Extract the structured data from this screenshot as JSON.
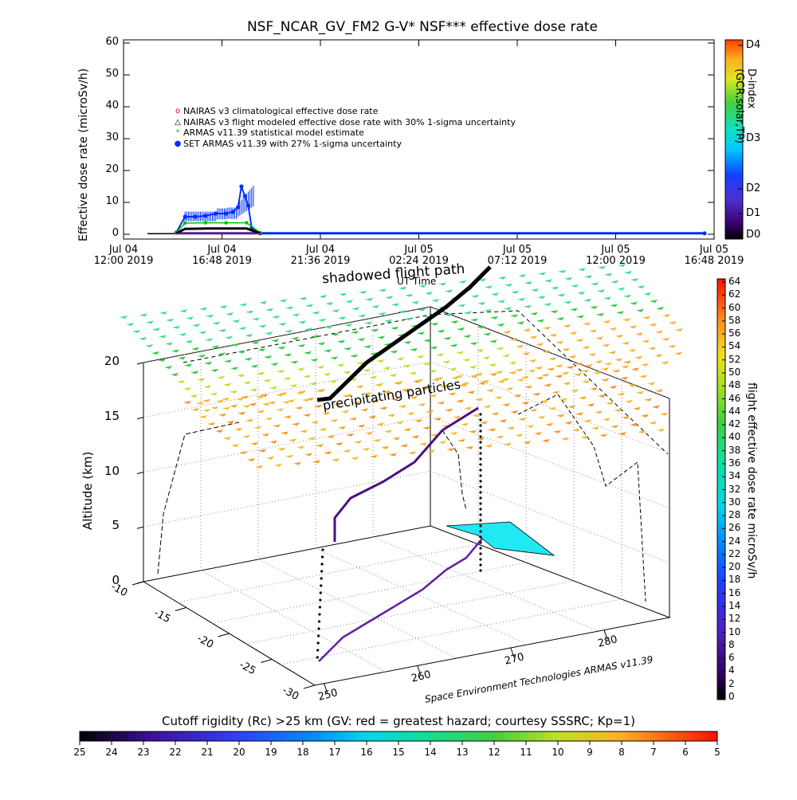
{
  "title": "NSF_NCAR_GV_FM2 G-V* NSF*** effective dose rate",
  "top_chart": {
    "ylabel": "Effective dose rate  (microSv/h)",
    "yticks": [
      "0",
      "10",
      "20",
      "30",
      "40",
      "50",
      "60"
    ],
    "xticks": [
      {
        "l1": "Jul 04",
        "l2": "12:00 2019"
      },
      {
        "l1": "Jul 04",
        "l2": "16:48 2019"
      },
      {
        "l1": "Jul 04",
        "l2": "21:36 2019"
      },
      {
        "l1": "Jul 05",
        "l2": "02:24 2019"
      },
      {
        "l1": "Jul 05",
        "l2": "07:12 2019"
      },
      {
        "l1": "Jul 05",
        "l2": "12:00 2019"
      },
      {
        "l1": "Jul 05",
        "l2": "16:48 2019"
      }
    ],
    "x_overlay_text": "UT Time",
    "dindex_label": "D-index (GCR,solar,TP)",
    "dindex_ticks": [
      "D4",
      "D3",
      "D2",
      "D1",
      "D0"
    ],
    "legend": [
      {
        "marker": "o",
        "color": "#e00000",
        "text": "NAIRAS v3 climatological effective dose rate"
      },
      {
        "marker": "△",
        "color": "#000000",
        "text": "NAIRAS v3 flight modeled effective dose rate with 30% 1-sigma uncertainty"
      },
      {
        "marker": "*",
        "color": "#00c000",
        "text": "ARMAS v11.39 statistical model estimate"
      },
      {
        "marker": "●",
        "color": "#0030ff",
        "text": "SET ARMAS v11.39 with 27% 1-sigma uncertainty"
      }
    ]
  },
  "chart_data": [
    {
      "type": "scatter",
      "title": "NSF_NCAR_GV_FM2 G-V* NSF*** effective dose rate",
      "xlabel": "UT Time",
      "ylabel": "Effective dose rate  (microSv/h)",
      "ylim": [
        0,
        60
      ],
      "xlim": [
        "2019-07-04 12:00",
        "2019-07-05 16:48"
      ],
      "series": [
        {
          "name": "SET ARMAS v11.39 with 27% 1-sigma uncertainty",
          "x": [
            "2019-07-04 14:34",
            "2019-07-04 15:00",
            "2019-07-04 15:30",
            "2019-07-04 16:00",
            "2019-07-04 16:30",
            "2019-07-04 17:00",
            "2019-07-04 17:20",
            "2019-07-04 17:35",
            "2019-07-04 17:45",
            "2019-07-04 17:55",
            "2019-07-04 18:05",
            "2019-07-04 18:15",
            "2019-07-04 18:40",
            "2019-07-05 16:20"
          ],
          "y": [
            0.5,
            5.5,
            5.5,
            5.8,
            6.5,
            6.5,
            7,
            8.5,
            15,
            12,
            9,
            2,
            0.3,
            0.3
          ]
        },
        {
          "name": "NAIRAS v3 flight modeled effective dose rate with 30% 1-sigma uncertainty",
          "x": [
            "2019-07-04 14:34",
            "2019-07-04 15:00",
            "2019-07-04 16:00",
            "2019-07-04 17:00",
            "2019-07-04 18:00",
            "2019-07-04 18:40"
          ],
          "y": [
            0.3,
            1.7,
            1.8,
            1.8,
            1.8,
            0.3
          ]
        },
        {
          "name": "ARMAS v11.39 statistical model estimate",
          "x": [
            "2019-07-04 14:34",
            "2019-07-04 15:00",
            "2019-07-04 16:00",
            "2019-07-04 17:00",
            "2019-07-04 18:00",
            "2019-07-04 18:40"
          ],
          "y": [
            0.5,
            3.5,
            3.6,
            3.6,
            3.6,
            0.5
          ]
        },
        {
          "name": "NAIRAS v3 climatological effective dose rate",
          "x": [
            "2019-07-04 14:34",
            "2019-07-04 15:00",
            "2019-07-04 18:00",
            "2019-07-04 18:40"
          ],
          "y": [
            0.2,
            0.3,
            0.3,
            0.2
          ]
        }
      ]
    },
    {
      "type": "scatter",
      "xlabel": "",
      "ylabel": "",
      "zlabel": "Altitude (km)",
      "zlim": [
        0,
        20
      ],
      "ztick_labels": [
        "0",
        "5",
        "10",
        "15",
        "20"
      ],
      "y_tick_labels": [
        "-10",
        "-15",
        "-20",
        "-25",
        "-30"
      ],
      "x_tick_labels": [
        "250",
        "260",
        "270",
        "280"
      ],
      "annotations": [
        "shadowed flight path",
        "precipitating particles"
      ],
      "credit": "Space Environment Technologies ARMAS v11.39",
      "flight_path": {
        "start_alt_km": 0,
        "cruise_alt_km": 12.5,
        "end_alt_km": 16
      }
    }
  ],
  "colorbar_right": {
    "label": "flight effective dose rate microSv/h",
    "ticks": [
      "64",
      "62",
      "60",
      "58",
      "56",
      "54",
      "52",
      "50",
      "48",
      "46",
      "44",
      "42",
      "40",
      "38",
      "36",
      "34",
      "32",
      "30",
      "28",
      "26",
      "24",
      "22",
      "20",
      "18",
      "16",
      "14",
      "12",
      "10",
      "8",
      "6",
      "4",
      "2",
      "0"
    ]
  },
  "colorbar_bottom": {
    "title": "Cutoff rigidity (Rc) >25 km (GV: red = greatest hazard; courtesy SSSRC; Kp=1)",
    "ticks": [
      "25",
      "24",
      "23",
      "22",
      "21",
      "20",
      "19",
      "18",
      "17",
      "16",
      "15",
      "14",
      "13",
      "12",
      "11",
      "10",
      "9",
      "8",
      "7",
      "6",
      "5"
    ]
  },
  "colors": {
    "armas_blue": "#0030ff",
    "nairas_black": "#000000",
    "armas_green": "#00c000",
    "nairas_red": "#e00000",
    "cyan_patch": "#22e8f4",
    "track_purple": "#7020a0"
  }
}
